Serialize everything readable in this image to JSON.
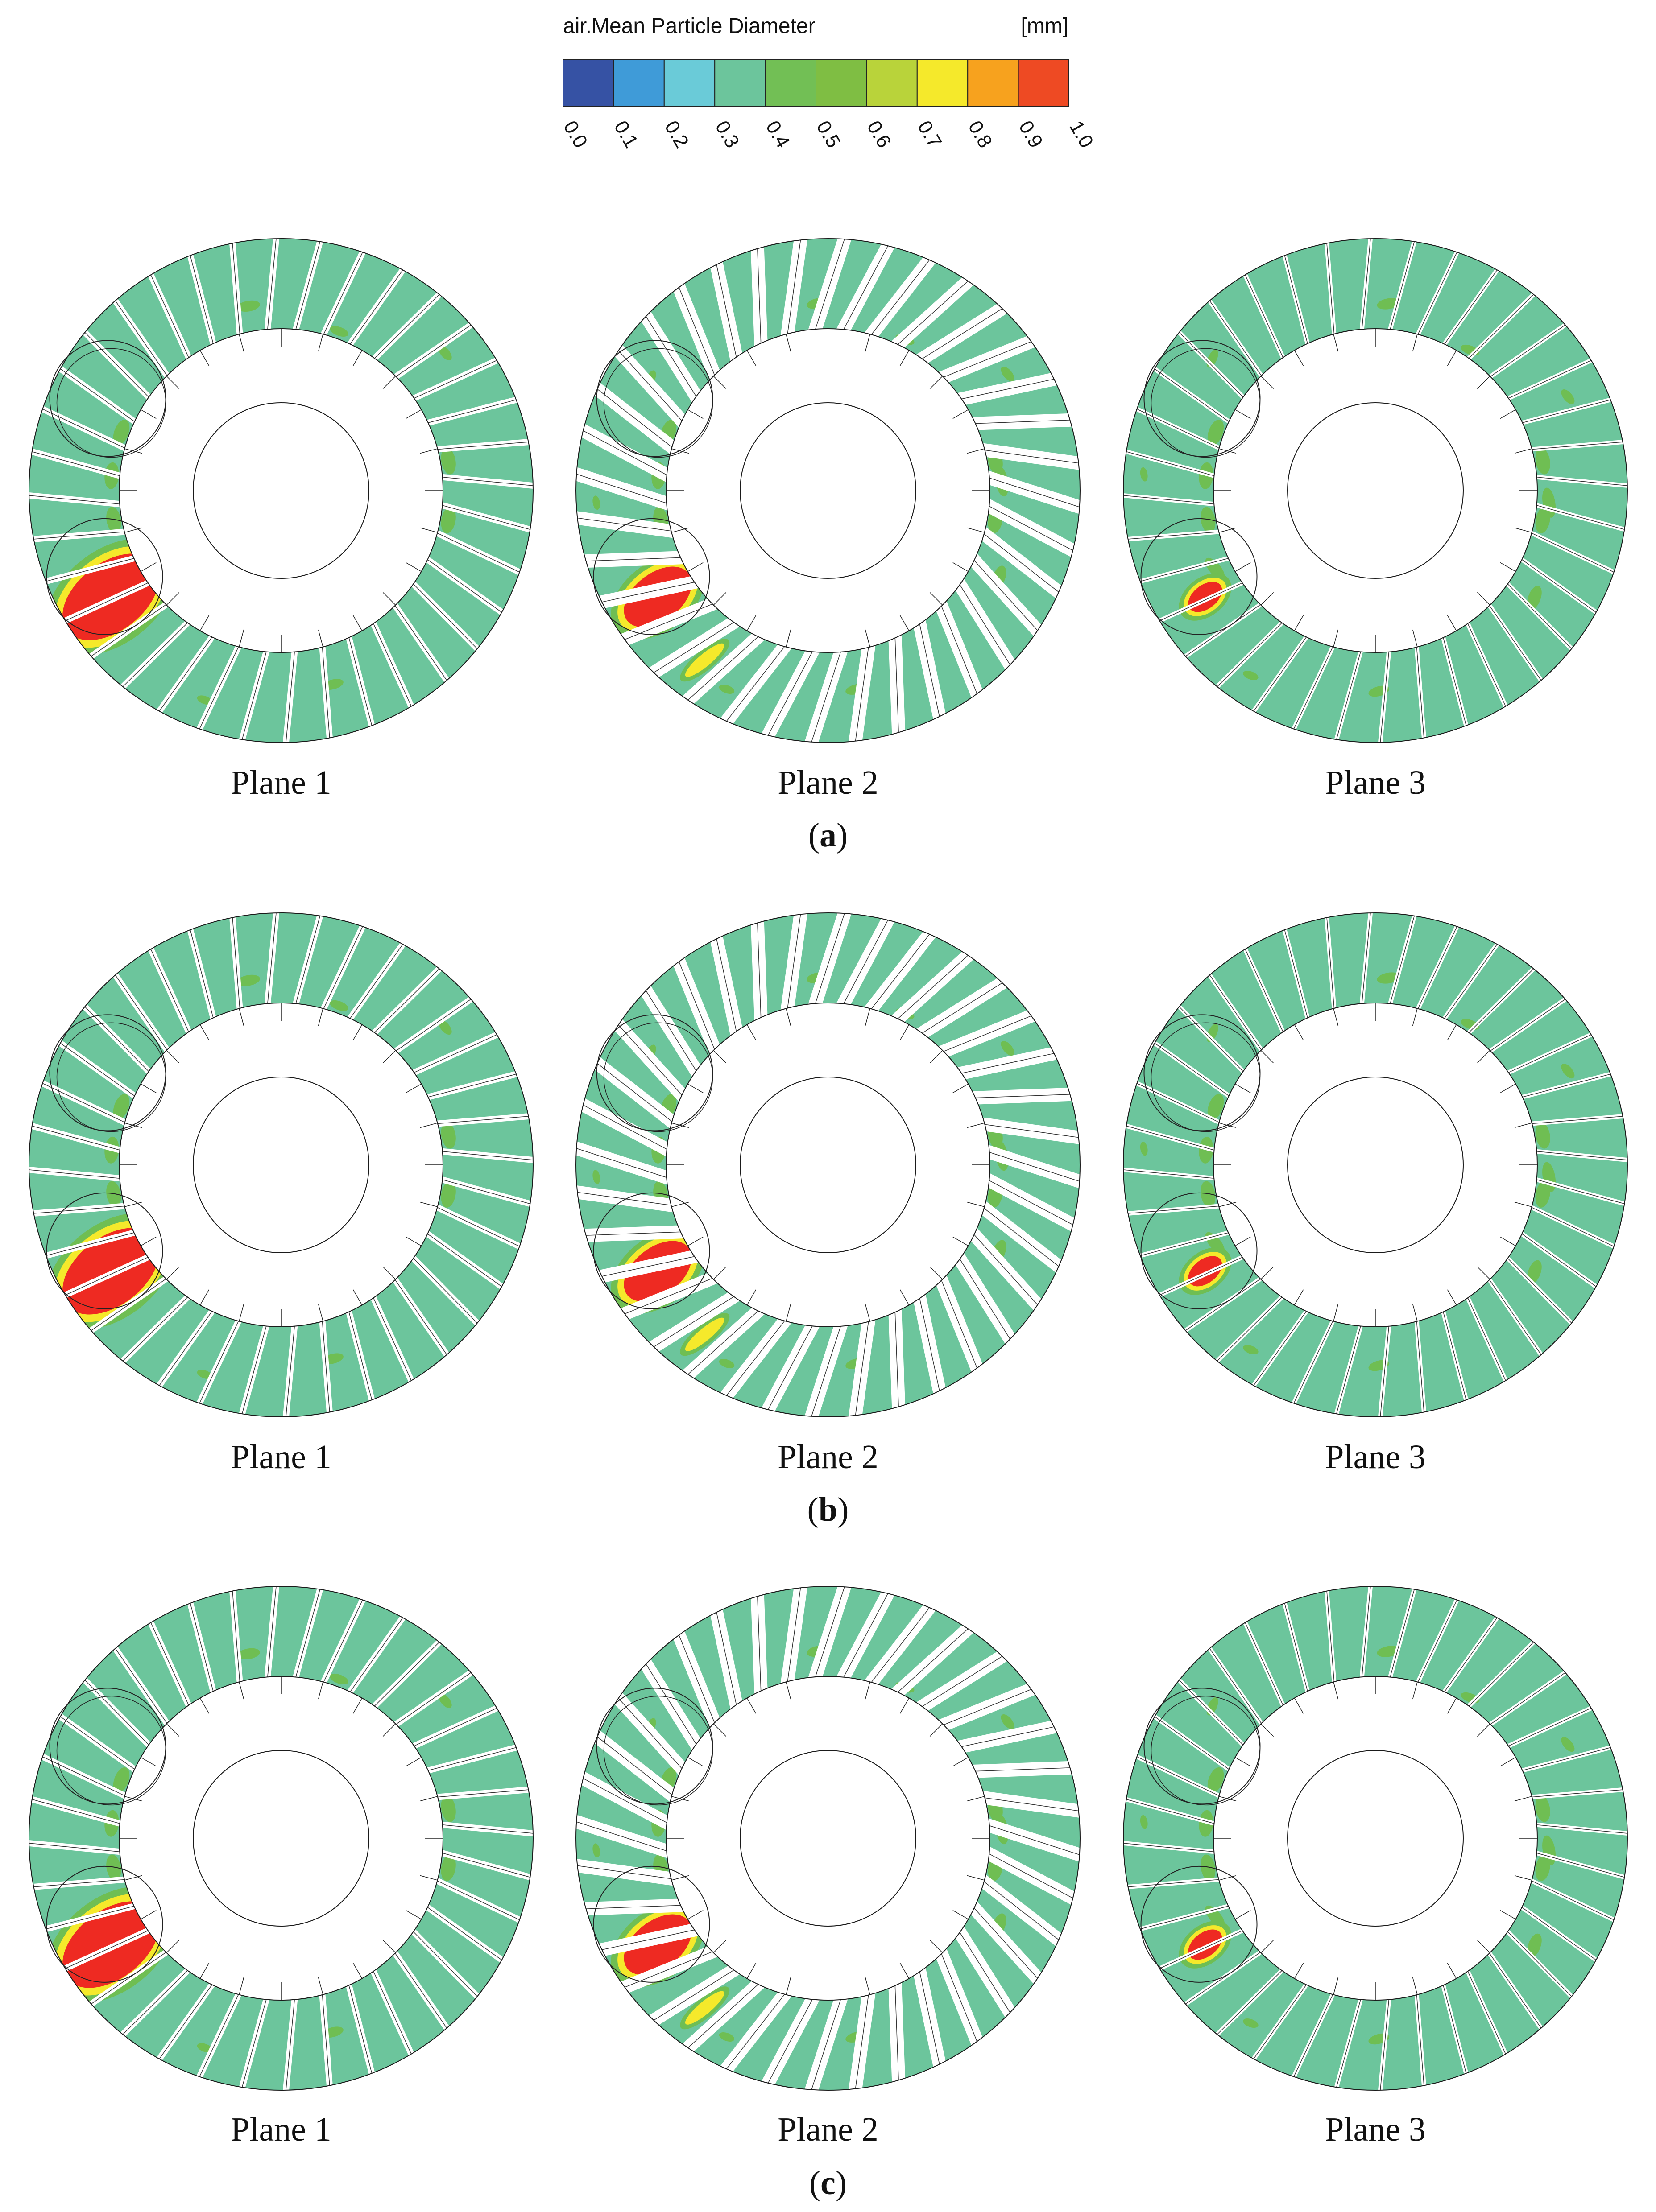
{
  "colorbar": {
    "title": "air.Mean Particle Diameter",
    "unit": "[mm]",
    "ticks": [
      "0.0",
      "0.1",
      "0.2",
      "0.3",
      "0.4",
      "0.5",
      "0.6",
      "0.7",
      "0.8",
      "0.9",
      "1.0"
    ],
    "colors": [
      "#3652a4",
      "#3f9bd8",
      "#6acbd8",
      "#6cc59c",
      "#72bf55",
      "#7fbe43",
      "#b9d33a",
      "#f5e92b",
      "#f7a21e",
      "#ee4a23"
    ]
  },
  "colors": {
    "background": "#6cc59c",
    "blob": "#6fbe53",
    "hot": "#ee2a22",
    "warm": "#f5e92b"
  },
  "rows": [
    {
      "label": "(a)",
      "label_open": "(",
      "label_letter": "a",
      "label_close": ")",
      "planes": [
        {
          "label": "Plane 1",
          "hotspot": 1.0
        },
        {
          "label": "Plane 2",
          "hotspot": 0.7
        },
        {
          "label": "Plane 3",
          "hotspot": 0.35
        }
      ]
    },
    {
      "label": "(b)",
      "label_open": "(",
      "label_letter": "b",
      "label_close": ")",
      "planes": [
        {
          "label": "Plane 1",
          "hotspot": 1.0
        },
        {
          "label": "Plane 2",
          "hotspot": 0.7
        },
        {
          "label": "Plane 3",
          "hotspot": 0.35
        }
      ]
    },
    {
      "label": "(c)",
      "label_open": "(",
      "label_letter": "c",
      "label_close": ")",
      "planes": [
        {
          "label": "Plane 1",
          "hotspot": 1.0
        },
        {
          "label": "Plane 2",
          "hotspot": 0.7
        },
        {
          "label": "Plane 3",
          "hotspot": 0.35
        }
      ]
    }
  ]
}
